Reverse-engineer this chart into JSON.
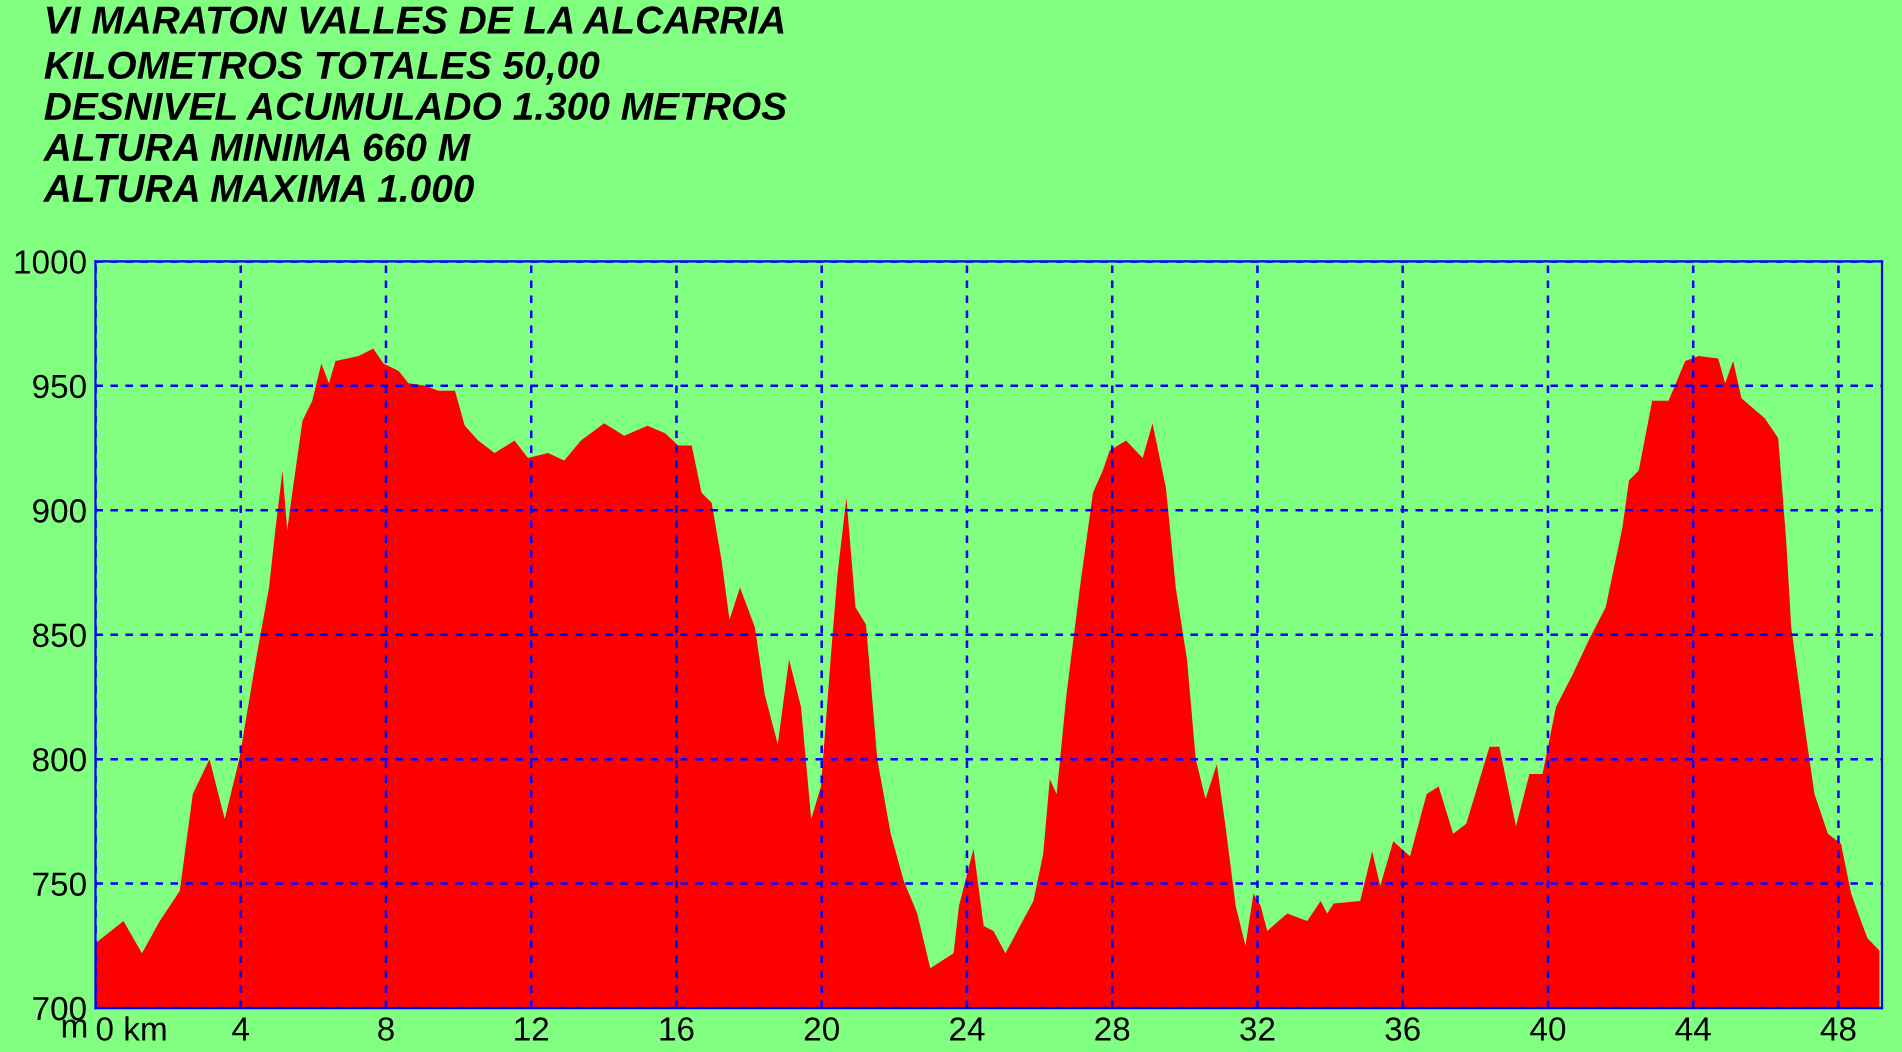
{
  "chart_data": {
    "type": "area",
    "title": "VI MARATON VALLES DE LA ALCARRIA",
    "subtitle": "KILOMETROS TOTALES 50,00\nDESNIVEL ACUMULADO 1.300 METROS\nALTURA MINIMA 660 M\nALTURA MAXIMA 1.000",
    "ylabel": "m",
    "x": [
      0,
      0.77,
      1.28,
      1.77,
      2.32,
      2.68,
      3.14,
      3.56,
      3.96,
      4.42,
      4.78,
      4.96,
      5.15,
      5.28,
      5.42,
      5.7,
      5.97,
      6.22,
      6.43,
      6.61,
      7.25,
      7.65,
      7.93,
      8.35,
      8.62,
      9.08,
      9.44,
      9.9,
      10.17,
      10.54,
      10.99,
      11.54,
      11.91,
      12.46,
      12.91,
      13.37,
      14.01,
      14.56,
      15.2,
      15.69,
      16.05,
      16.42,
      16.69,
      16.97,
      17.24,
      17.46,
      17.75,
      18.16,
      18.43,
      18.79,
      19.1,
      19.43,
      19.71,
      19.98,
      20.26,
      20.44,
      20.68,
      20.93,
      21.22,
      21.53,
      21.9,
      22.26,
      22.63,
      22.99,
      23.63,
      23.78,
      24.18,
      24.46,
      24.73,
      25.06,
      25.46,
      25.83,
      26.1,
      26.28,
      26.47,
      26.74,
      27.11,
      27.47,
      27.74,
      27.93,
      28.38,
      28.84,
      29.11,
      29.48,
      29.75,
      30.06,
      30.3,
      30.57,
      30.88,
      31.12,
      31.4,
      31.67,
      31.89,
      32.09,
      32.27,
      32.82,
      33.37,
      33.74,
      33.92,
      34.1,
      34.83,
      35.16,
      35.38,
      35.74,
      36.2,
      36.66,
      36.99,
      37.39,
      37.75,
      38.39,
      38.66,
      39.12,
      39.49,
      39.85,
      40.22,
      40.68,
      41.13,
      41.59,
      42.05,
      42.23,
      42.5,
      42.87,
      43.32,
      43.78,
      44.15,
      44.69,
      44.88,
      45.1,
      45.33,
      45.97,
      46.34,
      46.56,
      46.7,
      47.07,
      47.34,
      47.71,
      48.07,
      48.35,
      48.62,
      48.8,
      49.13
    ],
    "series": [
      {
        "color": "#ff0000",
        "values": [
          726,
          735,
          722,
          735,
          747,
          786,
          800,
          776,
          800,
          840,
          869,
          893,
          916,
          892,
          907,
          936,
          944,
          959,
          951,
          960,
          962,
          965,
          959,
          956,
          951,
          950,
          948,
          948,
          934,
          928,
          923,
          928,
          921,
          923,
          920,
          928,
          935,
          930,
          934,
          931,
          926,
          926,
          907,
          903,
          880,
          856,
          869,
          853,
          826,
          806,
          840,
          821,
          776,
          789,
          843,
          875,
          905,
          861,
          854,
          800,
          770,
          751,
          738,
          716,
          722,
          741,
          764,
          733,
          731,
          722,
          733,
          743,
          762,
          792,
          786,
          826,
          869,
          907,
          916,
          924,
          928,
          921,
          935,
          909,
          869,
          840,
          800,
          784,
          798,
          773,
          741,
          725,
          746,
          741,
          731,
          738,
          735,
          743,
          738,
          742,
          743,
          763,
          749,
          767,
          761,
          786,
          789,
          770,
          774,
          805,
          805,
          773,
          794,
          794,
          821,
          834,
          848,
          861,
          893,
          912,
          916,
          944,
          944,
          960,
          962,
          961,
          951,
          960,
          945,
          937,
          929,
          888,
          853,
          813,
          786,
          770,
          766,
          746,
          735,
          728,
          723
        ]
      }
    ],
    "xlim": [
      0,
      49.2
    ],
    "xticks": [
      {
        "value": 0,
        "label": "0 km"
      },
      4,
      8,
      12,
      16,
      20,
      24,
      28,
      32,
      36,
      40,
      44,
      48
    ],
    "ylim": [
      700,
      1000
    ],
    "yticks": [
      700,
      750,
      800,
      850,
      900,
      950,
      1000
    ],
    "grid": true,
    "line_style": "dashed",
    "legend": false
  }
}
